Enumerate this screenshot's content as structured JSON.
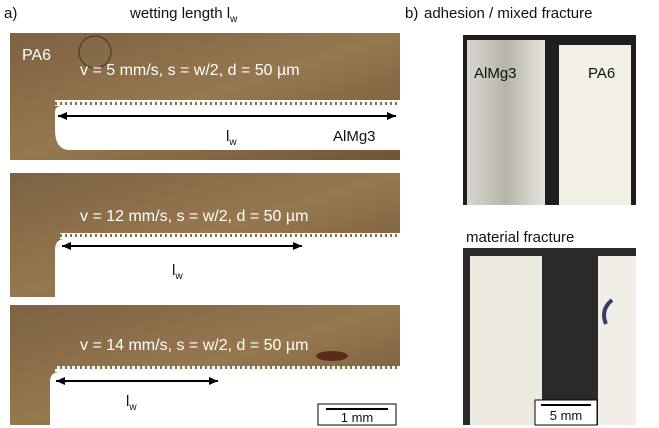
{
  "panel_a": {
    "label": "a)",
    "title": {
      "text": "wetting length l",
      "subscript": "w"
    },
    "images": [
      {
        "material_top": "PA6",
        "params": "v = 5 mm/s, s = w/2, d = 50 µm",
        "length_label": {
          "text": "l",
          "subscript": "w"
        },
        "material_bottom": "AlMg3"
      },
      {
        "params": "v = 12 mm/s, s = w/2, d = 50 µm",
        "length_label": {
          "text": "l",
          "subscript": "w"
        }
      },
      {
        "params": "v = 14 mm/s, s = w/2, d = 50 µm",
        "length_label": {
          "text": "l",
          "subscript": "w"
        },
        "scale_bar": "1 mm"
      }
    ]
  },
  "panel_b": {
    "label": "b)",
    "title": "adhesion / mixed fracture",
    "top_labels": [
      "AlMg3",
      "PA6"
    ],
    "bottom_title": "material fracture",
    "scale_bar": "5 mm"
  }
}
